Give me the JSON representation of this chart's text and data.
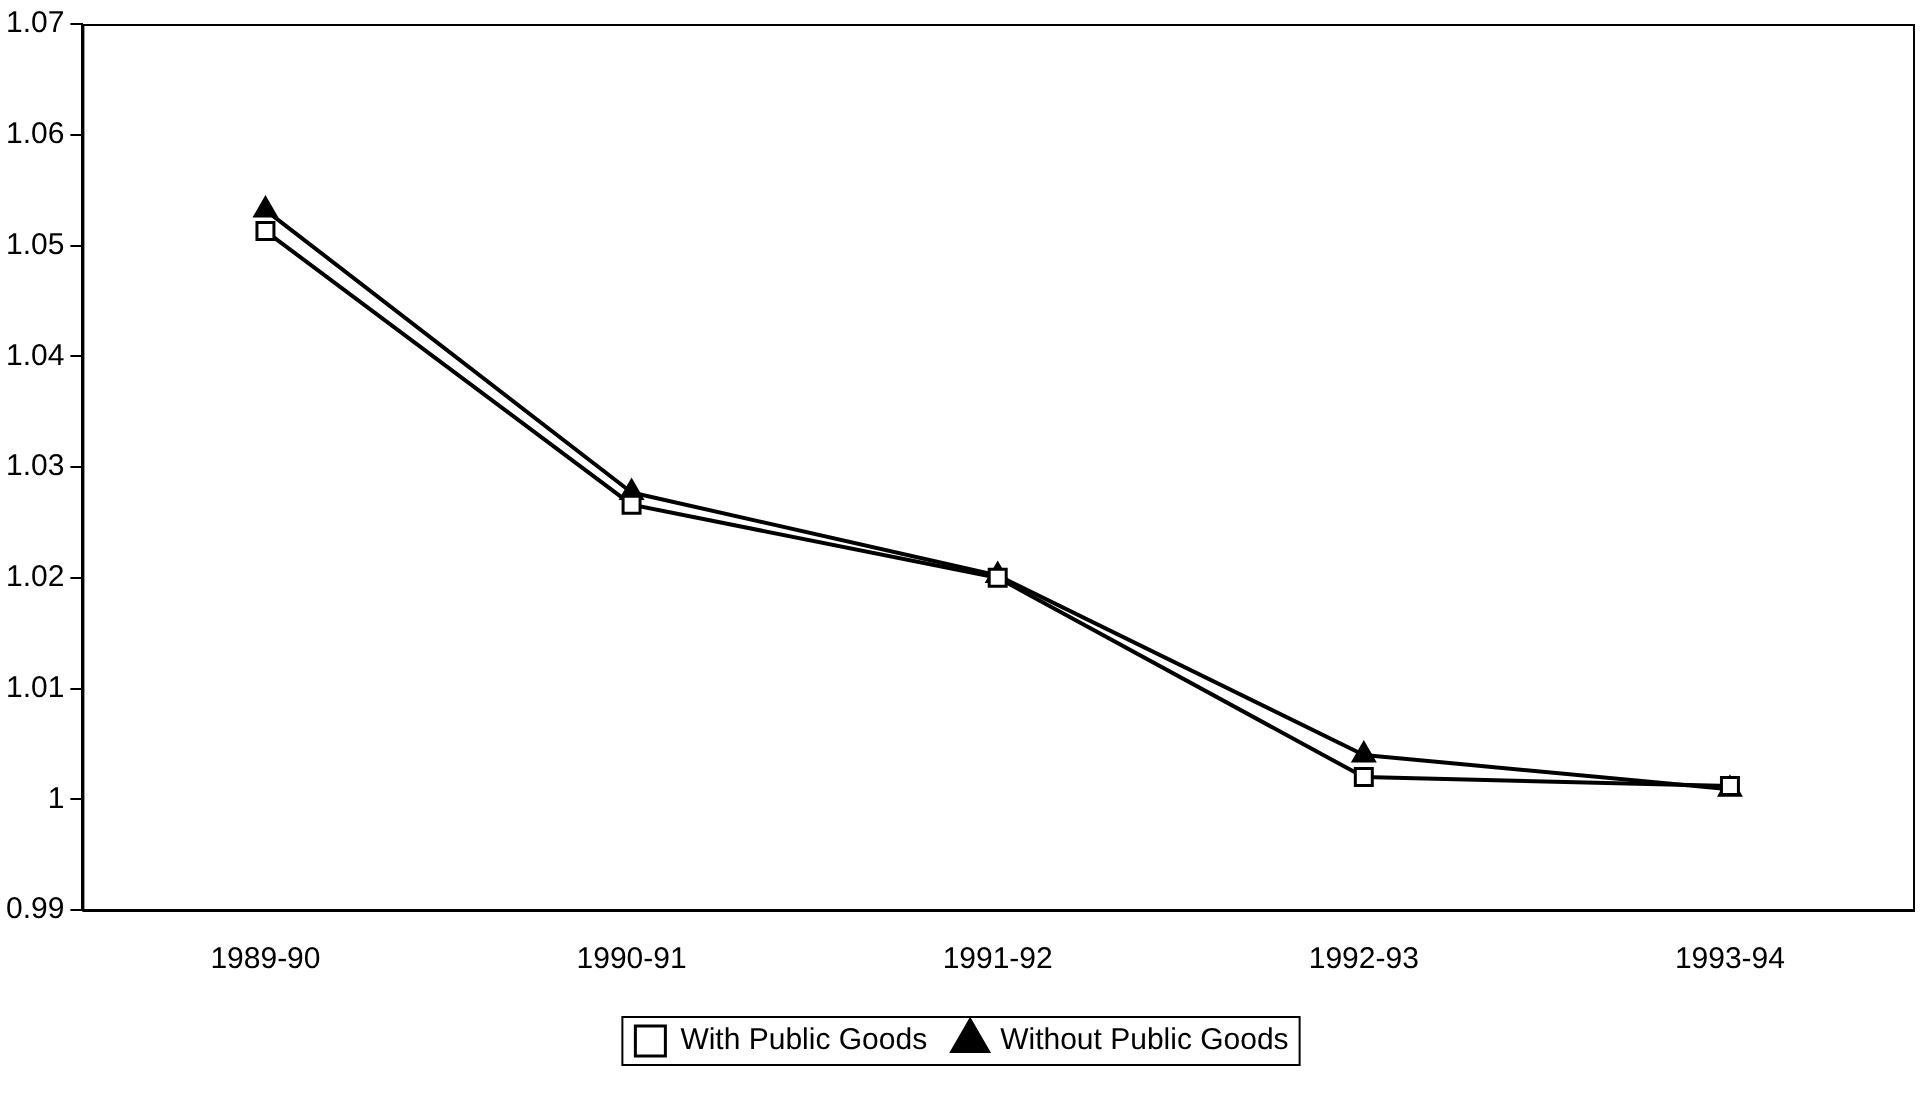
{
  "chart_data": {
    "type": "line",
    "categories": [
      "1989-90",
      "1990-91",
      "1991-92",
      "1992-93",
      "1993-94"
    ],
    "series": [
      {
        "name": "With Public Goods",
        "color": "#000000",
        "marker": "square",
        "values": [
          1.0513,
          1.0266,
          1.02,
          1.002,
          1.0012
        ]
      },
      {
        "name": "Without Public Goods",
        "color": "#000000",
        "marker": "triangle",
        "values": [
          1.0532,
          1.0277,
          1.0202,
          1.004,
          1.0009
        ]
      }
    ],
    "ylim": [
      0.99,
      1.07
    ],
    "yticks": [
      0.99,
      1,
      1.01,
      1.02,
      1.03,
      1.04,
      1.05,
      1.06,
      1.07
    ],
    "grid": false,
    "legend": "bottom",
    "line_style": "solid"
  }
}
